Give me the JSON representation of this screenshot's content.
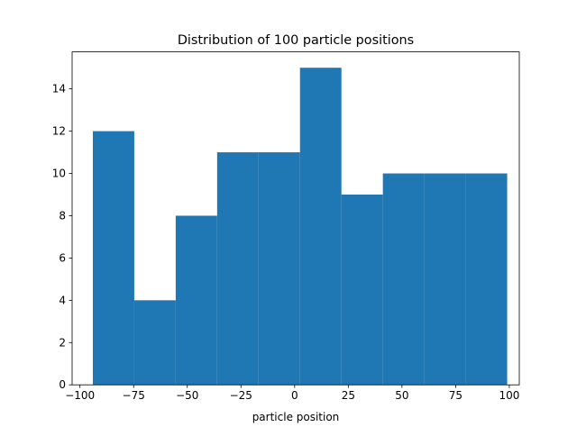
{
  "chart_data": {
    "type": "bar",
    "title": "Distribution of 100 particle positions",
    "xlabel": "particle position",
    "ylabel": "",
    "bins": [
      {
        "x0": -94.0,
        "x1": -74.7,
        "count": 12
      },
      {
        "x0": -74.7,
        "x1": -55.4,
        "count": 4
      },
      {
        "x0": -55.4,
        "x1": -36.1,
        "count": 8
      },
      {
        "x0": -36.1,
        "x1": -16.8,
        "count": 11
      },
      {
        "x0": -16.8,
        "x1": 2.5,
        "count": 11
      },
      {
        "x0": 2.5,
        "x1": 21.8,
        "count": 15
      },
      {
        "x0": 21.8,
        "x1": 41.1,
        "count": 9
      },
      {
        "x0": 41.1,
        "x1": 60.4,
        "count": 10
      },
      {
        "x0": 60.4,
        "x1": 79.7,
        "count": 10
      },
      {
        "x0": 79.7,
        "x1": 99.0,
        "count": 10
      }
    ],
    "xlim": [
      -103.65,
      104.65
    ],
    "ylim": [
      0,
      15.75
    ],
    "xticks": [
      -100,
      -75,
      -50,
      -25,
      0,
      25,
      50,
      75,
      100
    ],
    "xtick_labels": [
      "−100",
      "−75",
      "−50",
      "−25",
      "0",
      "25",
      "50",
      "75",
      "100"
    ],
    "yticks": [
      0,
      2,
      4,
      6,
      8,
      10,
      12,
      14
    ],
    "ytick_labels": [
      "0",
      "2",
      "4",
      "6",
      "8",
      "10",
      "12",
      "14"
    ],
    "bar_color": "#1f77b4",
    "grid": false,
    "legend": "none"
  }
}
